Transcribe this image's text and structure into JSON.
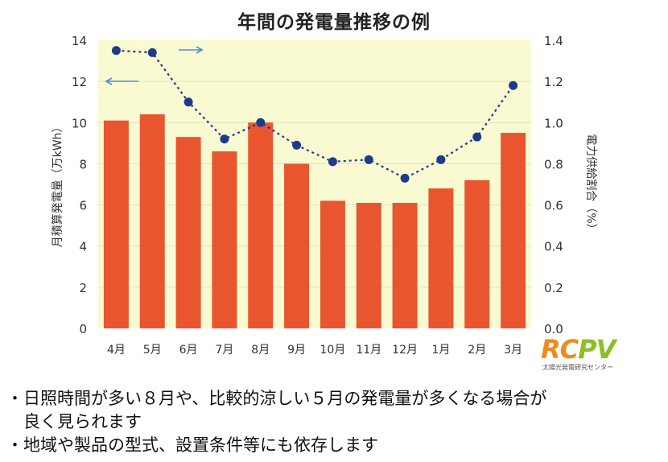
{
  "title": "年間の発電量推移の例",
  "colors": {
    "plot_background": "#fafad2",
    "bar": "#e8552e",
    "line": "#1f3a8a",
    "arrow": "#4a8fd1",
    "logo_orange": "#f08a1c",
    "logo_green": "#8cbf26"
  },
  "logo": {
    "text": "RCPV",
    "tagline": "太陽光発電研究センター"
  },
  "notes": [
    "・日照時間が多い８月や、比較的涼しい５月の発電量が多くなる場合が",
    "　良く見られます",
    "・地域や製品の型式、設置条件等にも依存します"
  ],
  "chart_data": {
    "type": "bar+line",
    "title": "年間の発電量推移の例",
    "categories": [
      "4月",
      "5月",
      "6月",
      "7月",
      "8月",
      "9月",
      "10月",
      "11月",
      "12月",
      "1月",
      "2月",
      "3月"
    ],
    "series": [
      {
        "name": "月積算発電量",
        "axis": "left",
        "kind": "bar",
        "values": [
          10.1,
          10.4,
          9.3,
          8.6,
          10.0,
          8.0,
          6.2,
          6.1,
          6.1,
          6.8,
          7.2,
          9.5
        ]
      },
      {
        "name": "電力供給割合",
        "axis": "right",
        "kind": "line",
        "values": [
          1.35,
          1.34,
          1.1,
          0.92,
          1.0,
          0.89,
          0.81,
          0.82,
          0.73,
          0.82,
          0.93,
          1.18
        ]
      }
    ],
    "ylabel_left": "月積算発電量（万kWh）",
    "ylabel_right": "電力供給割合（%）",
    "ylim_left": [
      0,
      14
    ],
    "ylim_right": [
      0,
      1.4
    ],
    "yticks_left": [
      "0",
      "2",
      "4",
      "6",
      "8",
      "10",
      "12",
      "14"
    ],
    "yticks_right": [
      "0.0",
      "0.2",
      "0.4",
      "0.6",
      "0.8",
      "1.0",
      "1.2",
      "1.4"
    ],
    "grid": true
  }
}
